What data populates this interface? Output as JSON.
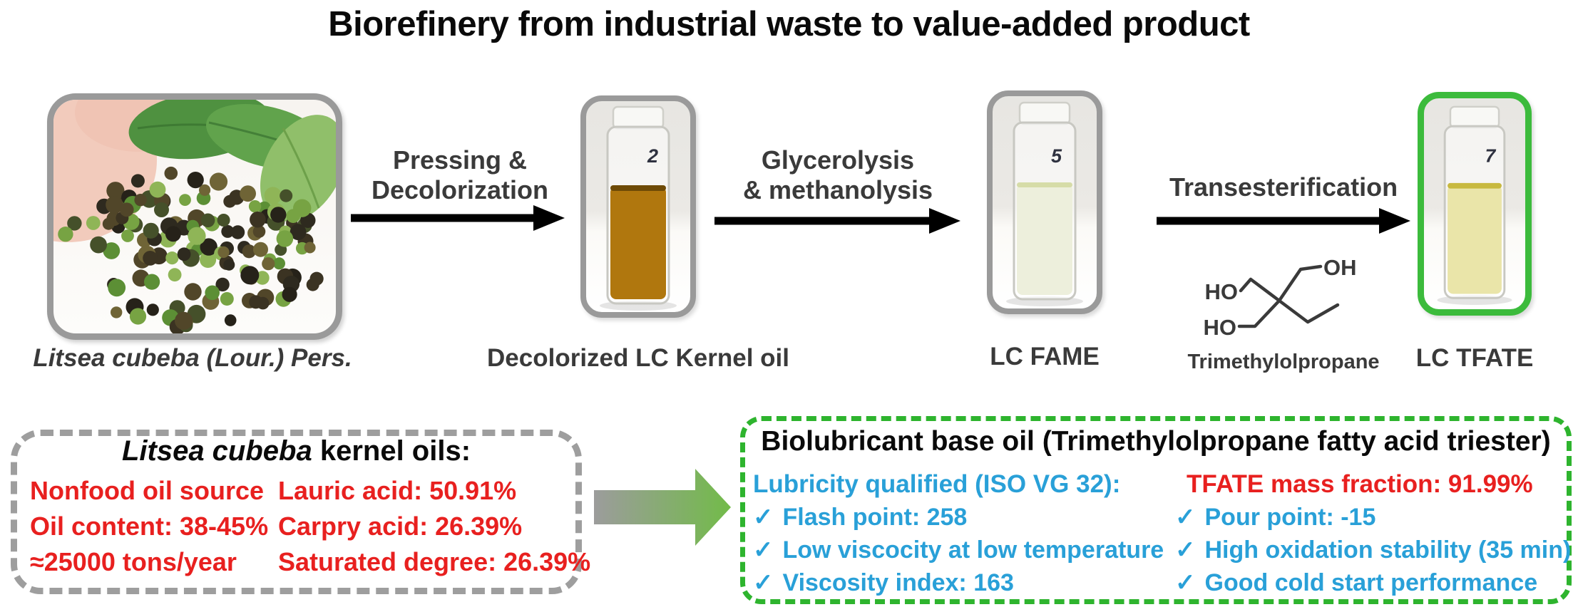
{
  "title": "Biorefinery from industrial waste to value-added product",
  "colors": {
    "accent_green_frame": "#3cbb3c",
    "panel_green_dash": "#2eb42e",
    "panel_gray_dash": "#9e9e9e",
    "red_text": "#e8201f",
    "blue_text": "#29a0d8",
    "label_gray": "#3a3a3a"
  },
  "flow": {
    "source_caption": "Litsea cubeba (Lour.) Pers.",
    "steps": [
      {
        "line1": "Pressing &",
        "line2": "Decolorization"
      },
      {
        "line1": "Glycerolysis",
        "line2": "& methanolysis"
      },
      {
        "line1": "Transesterification",
        "line2": ""
      }
    ],
    "vials": [
      {
        "number": "2",
        "caption": "Decolorized LC Kernel oil",
        "liquid_color": "#b0770e"
      },
      {
        "number": "5",
        "caption": "LC FAME",
        "liquid_color": "#edefdc"
      },
      {
        "number": "7",
        "caption": "LC TFATE",
        "liquid_color": "#eae5a9"
      }
    ],
    "molecule": {
      "caption": "Trimethylolpropane",
      "label_left": "HO",
      "label_bottom_left": "HO",
      "label_top_right": "OH"
    }
  },
  "left_panel": {
    "title_italic": "Litsea cubeba",
    "title_rest": " kernel oils:",
    "col1": [
      "Nonfood oil source",
      "Oil content: 38-45%",
      "≈25000 tons/year"
    ],
    "col2": [
      "Lauric acid: 50.91%",
      "Carpry acid: 26.39%",
      "Saturated degree: 26.39%"
    ]
  },
  "right_panel": {
    "title": "Biolubricant base oil (Trimethylolpropane fatty acid triester)",
    "lubricity_header": "Lubricity qualified (ISO VG 32):",
    "tfate_fraction": "TFATE mass fraction: 91.99%",
    "check_icon": "✓",
    "col1": [
      "Flash point: 258",
      "Low viscocity at low temperature",
      "Viscosity index: 163"
    ],
    "col2": [
      "Pour point: -15",
      "High oxidation stability (35 min)",
      "Good cold start performance"
    ]
  }
}
